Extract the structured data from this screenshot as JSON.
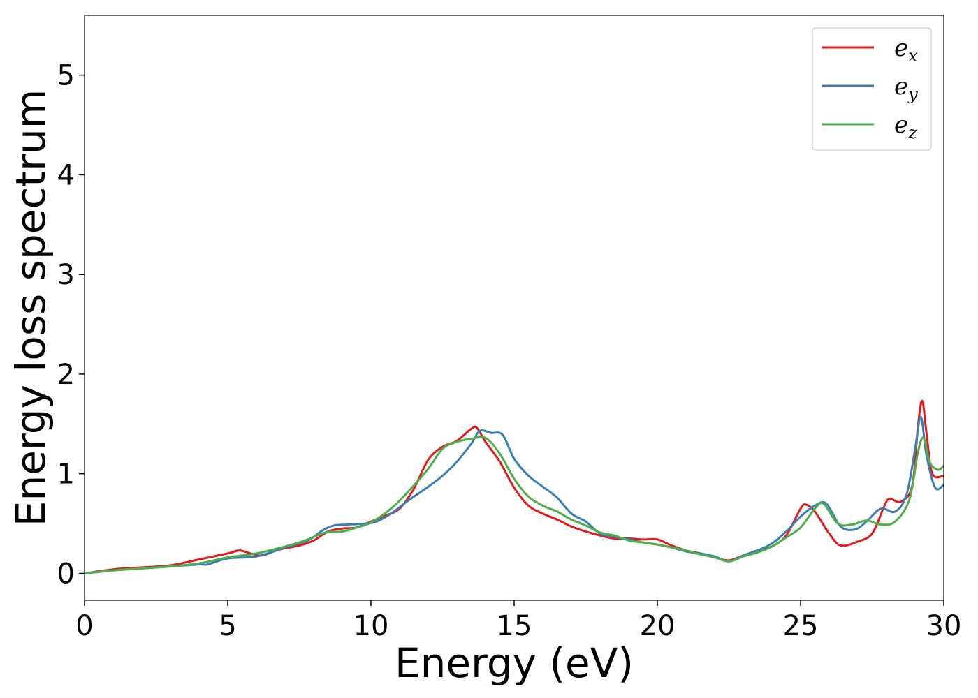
{
  "chart_data": {
    "type": "line",
    "xlabel": "Energy (eV)",
    "ylabel": "Energy loss spectrum",
    "xlim": [
      0,
      30
    ],
    "ylim": [
      -0.27,
      5.6
    ],
    "xticks": [
      0,
      5,
      10,
      15,
      20,
      25,
      30
    ],
    "yticks": [
      0,
      1,
      2,
      3,
      4,
      5
    ],
    "grid": false,
    "legend_position": "top-right",
    "series": [
      {
        "name": "e_x",
        "legend_base": "e",
        "legend_sub": "x",
        "color": "#e41a1c",
        "x": [
          0,
          1,
          2,
          3,
          4,
          5,
          5.4,
          5.8,
          6.2,
          6.8,
          7.5,
          8,
          8.5,
          9,
          9.5,
          10,
          10.5,
          11,
          11.5,
          12,
          12.5,
          13,
          13.5,
          13.7,
          14,
          14.5,
          15,
          15.5,
          16,
          16.5,
          17,
          17.5,
          18,
          18.5,
          19,
          19.5,
          20,
          20.5,
          21,
          21.5,
          22,
          22.5,
          23,
          23.5,
          24,
          24.5,
          25,
          25.2,
          25.5,
          26,
          26.4,
          27,
          27.5,
          27.9,
          28.1,
          28.5,
          28.9,
          29.1,
          29.25,
          29.4,
          29.6,
          30
        ],
        "y": [
          0,
          0.04,
          0.06,
          0.08,
          0.14,
          0.2,
          0.23,
          0.2,
          0.18,
          0.24,
          0.28,
          0.33,
          0.42,
          0.45,
          0.46,
          0.52,
          0.58,
          0.65,
          0.85,
          1.14,
          1.27,
          1.33,
          1.45,
          1.46,
          1.32,
          1.12,
          0.86,
          0.68,
          0.6,
          0.54,
          0.47,
          0.42,
          0.38,
          0.35,
          0.35,
          0.34,
          0.34,
          0.28,
          0.23,
          0.2,
          0.16,
          0.13,
          0.18,
          0.23,
          0.27,
          0.38,
          0.65,
          0.69,
          0.62,
          0.4,
          0.28,
          0.32,
          0.4,
          0.66,
          0.75,
          0.72,
          0.88,
          1.48,
          1.73,
          1.4,
          1.0,
          0.98
        ]
      },
      {
        "name": "e_y",
        "legend_base": "e",
        "legend_sub": "y",
        "color": "#377eb8",
        "x": [
          0,
          1,
          2,
          3,
          4,
          4.3,
          5,
          6,
          7,
          7.8,
          8.3,
          8.7,
          9.2,
          9.8,
          10.2,
          10.7,
          11.3,
          12,
          12.5,
          13,
          13.5,
          13.8,
          14.2,
          14.6,
          15,
          15.5,
          16,
          16.5,
          17,
          17.5,
          18,
          18.5,
          19,
          19.5,
          20,
          20.5,
          21,
          21.5,
          22,
          22.5,
          23,
          23.5,
          24,
          24.5,
          25,
          25.5,
          25.9,
          26.4,
          26.9,
          27.3,
          27.8,
          28.3,
          28.7,
          29.0,
          29.2,
          29.4,
          29.7,
          30
        ],
        "y": [
          0,
          0.03,
          0.05,
          0.07,
          0.09,
          0.09,
          0.15,
          0.17,
          0.26,
          0.33,
          0.43,
          0.48,
          0.49,
          0.5,
          0.52,
          0.6,
          0.73,
          0.87,
          0.98,
          1.12,
          1.3,
          1.43,
          1.41,
          1.39,
          1.15,
          0.98,
          0.87,
          0.76,
          0.6,
          0.52,
          0.4,
          0.37,
          0.34,
          0.31,
          0.29,
          0.26,
          0.22,
          0.2,
          0.17,
          0.12,
          0.18,
          0.23,
          0.3,
          0.42,
          0.57,
          0.68,
          0.7,
          0.47,
          0.44,
          0.52,
          0.65,
          0.62,
          0.79,
          1.25,
          1.57,
          1.18,
          0.86,
          0.89
        ]
      },
      {
        "name": "e_z",
        "legend_base": "e",
        "legend_sub": "z",
        "color": "#4daf4a",
        "x": [
          0,
          1,
          2,
          3,
          4,
          5,
          6,
          7,
          7.7,
          8.4,
          9,
          9.5,
          10,
          10.7,
          11.3,
          12,
          12.5,
          13,
          13.5,
          14,
          14.5,
          15,
          15.5,
          16,
          16.5,
          17,
          17.5,
          18,
          18.5,
          19,
          19.5,
          20,
          20.5,
          21,
          21.5,
          22,
          22.5,
          23,
          23.5,
          24,
          24.5,
          25,
          25.5,
          25.8,
          26.3,
          26.8,
          27.3,
          27.8,
          28.3,
          28.8,
          29.1,
          29.3,
          29.5,
          29.8,
          30
        ],
        "y": [
          0,
          0.03,
          0.05,
          0.07,
          0.1,
          0.16,
          0.2,
          0.27,
          0.33,
          0.41,
          0.42,
          0.46,
          0.51,
          0.65,
          0.82,
          1.05,
          1.25,
          1.32,
          1.35,
          1.36,
          1.2,
          0.95,
          0.77,
          0.68,
          0.62,
          0.54,
          0.48,
          0.41,
          0.38,
          0.33,
          0.31,
          0.29,
          0.26,
          0.23,
          0.19,
          0.16,
          0.12,
          0.17,
          0.21,
          0.27,
          0.36,
          0.46,
          0.65,
          0.7,
          0.5,
          0.49,
          0.53,
          0.49,
          0.52,
          0.74,
          1.22,
          1.36,
          1.12,
          1.04,
          1.08
        ]
      }
    ]
  }
}
